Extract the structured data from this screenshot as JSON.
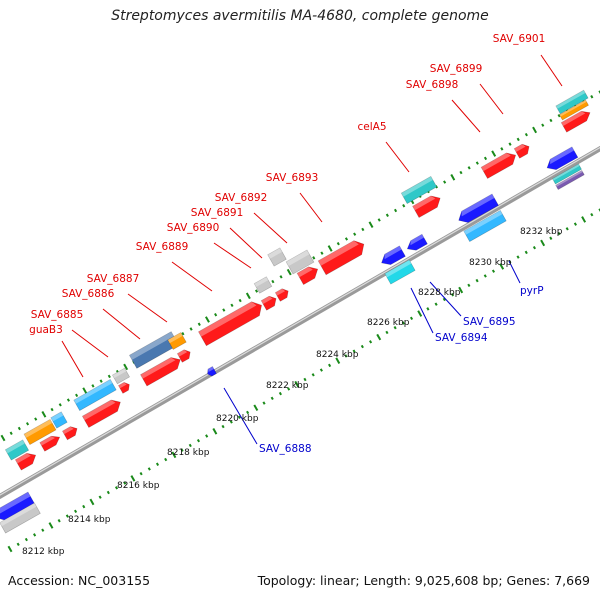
{
  "title": "Streptomyces avermitilis MA-4680, complete genome",
  "footer": {
    "accession": "Accession: NC_003155",
    "summary": "Topology: linear; Length: 9,025,608 bp; Genes: 7,669"
  },
  "ticks_kbp": [
    "8212 kbp",
    "8214 kbp",
    "8216 kbp",
    "8218 kbp",
    "8220 kbp",
    "8222 kbp",
    "8224 kbp",
    "8226 kbp",
    "8228 kbp",
    "8230 kbp",
    "8232 kbp"
  ],
  "genes_top": [
    "SAV_6901",
    "SAV_6899",
    "SAV_6898",
    "celA5",
    "SAV_6893",
    "SAV_6892",
    "SAV_6891",
    "SAV_6890",
    "SAV_6889",
    "SAV_6887",
    "SAV_6886",
    "SAV_6885",
    "guaB3"
  ],
  "genes_bottom": [
    "pyrP",
    "SAV_6895",
    "SAV_6894",
    "SAV_6888"
  ],
  "colors": {
    "forward_label": "#e00000",
    "reverse_label": "#0000cc",
    "red": "#ff1a1a",
    "blue": "#1a1aff",
    "cyan": "#22d8e8",
    "sky": "#33b8ff",
    "orange": "#ff9a00",
    "gray": "#c8c8c8",
    "steel": "#4a78b0",
    "teal": "#2fc8c8",
    "tick": "#1a8a1a"
  }
}
